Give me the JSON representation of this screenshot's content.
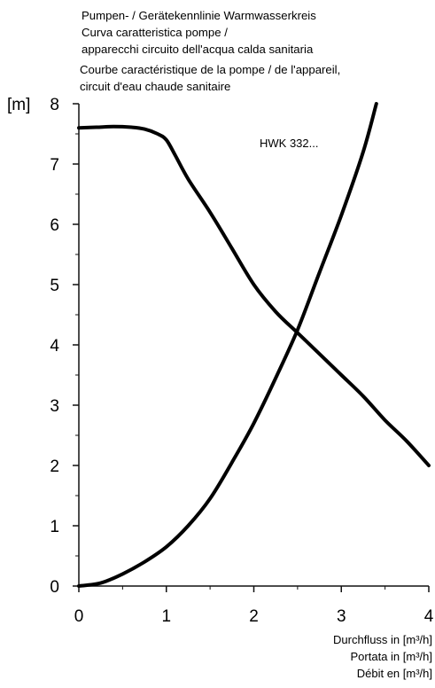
{
  "chart_data": {
    "type": "line",
    "title_lines": [
      "Pumpen- / Gerätekennlinie Warmwasserkreis",
      "Curva caratteristica pompe /",
      "apparecchi circuito dell'acqua calda sanitaria",
      "Courbe caractéristique de la pompe / de l'appareil,",
      "circuit d'eau chaude sanitaire"
    ],
    "ylabel": "[m]",
    "xlabel_lines": [
      "Durchfluss in [m³/h]",
      "Portata in [m³/h]",
      "Débit en [m³/h]"
    ],
    "xlim": [
      0,
      4
    ],
    "ylim": [
      0,
      8
    ],
    "x_ticks": [
      0,
      1,
      2,
      3,
      4
    ],
    "y_ticks": [
      0,
      1,
      2,
      3,
      4,
      5,
      6,
      7,
      8
    ],
    "annotation": "HWK 332...",
    "series": [
      {
        "role": "pump-curve",
        "x": [
          0,
          0.2,
          0.4,
          0.6,
          0.75,
          0.9,
          1.0,
          1.1,
          1.25,
          1.5,
          1.75,
          2.0,
          2.25,
          2.5,
          2.75,
          3.0,
          3.25,
          3.5,
          3.75,
          4.0
        ],
        "y": [
          7.6,
          7.61,
          7.62,
          7.61,
          7.58,
          7.5,
          7.4,
          7.15,
          6.75,
          6.2,
          5.6,
          5.0,
          4.55,
          4.2,
          3.85,
          3.5,
          3.15,
          2.75,
          2.4,
          2.0
        ]
      },
      {
        "role": "system-curve",
        "x": [
          0,
          0.25,
          0.5,
          0.75,
          1.0,
          1.25,
          1.5,
          1.75,
          2.0,
          2.25,
          2.5,
          2.75,
          3.0,
          3.25,
          3.4
        ],
        "y": [
          0,
          0.05,
          0.2,
          0.4,
          0.65,
          1.0,
          1.45,
          2.05,
          2.7,
          3.45,
          4.25,
          5.2,
          6.15,
          7.2,
          8.0
        ]
      }
    ]
  }
}
